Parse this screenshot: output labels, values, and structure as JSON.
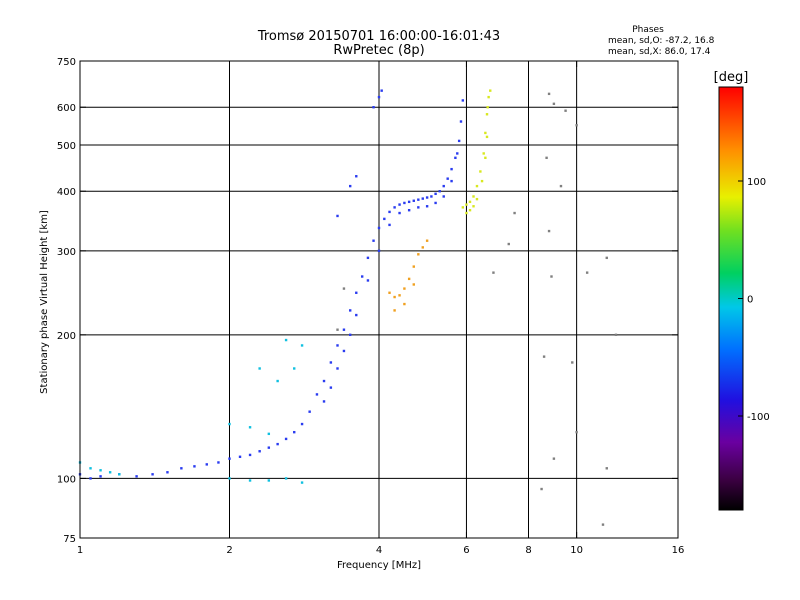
{
  "chart_data": {
    "type": "scatter",
    "title": "Tromsø 20150701 16:00:00-16:01:43",
    "subtitle": "RwPretec (8p)",
    "phases_info": {
      "heading": "Phases",
      "line_o": "mean, sd,O: -87.2, 16.8",
      "line_x": "mean, sd,X:  86.0, 17.4"
    },
    "xlabel": "Frequency [MHz]",
    "ylabel": "Stationary phase Virtual Height [km]",
    "x_scale": "log",
    "y_scale": "log",
    "xlim": [
      1,
      16
    ],
    "ylim": [
      75,
      750
    ],
    "x_ticks": [
      1,
      2,
      4,
      6,
      8,
      10,
      16
    ],
    "y_ticks": [
      75,
      100,
      200,
      300,
      400,
      500,
      600,
      750
    ],
    "x_gridlines": [
      2,
      4,
      6,
      8,
      10
    ],
    "y_gridlines": [
      100,
      200,
      300,
      400,
      500,
      600
    ],
    "grid": true,
    "colorbar": {
      "label": "[deg]",
      "min": -180,
      "max": 180,
      "ticks": [
        -100,
        0,
        100
      ]
    },
    "series": [
      {
        "mode": "O",
        "phase_deg": -87,
        "color": "#2a3cf0",
        "points": [
          [
            1.0,
            102
          ],
          [
            1.05,
            100
          ],
          [
            1.1,
            101
          ],
          [
            1.2,
            102
          ],
          [
            1.3,
            101
          ],
          [
            1.4,
            102
          ],
          [
            1.5,
            103
          ],
          [
            1.6,
            105
          ],
          [
            1.7,
            106
          ],
          [
            1.8,
            107
          ],
          [
            1.9,
            108
          ],
          [
            2.0,
            110
          ],
          [
            2.1,
            111
          ],
          [
            2.2,
            112
          ],
          [
            2.3,
            114
          ],
          [
            2.4,
            116
          ],
          [
            2.5,
            118
          ],
          [
            2.6,
            121
          ],
          [
            2.7,
            125
          ],
          [
            2.8,
            130
          ],
          [
            2.9,
            138
          ],
          [
            3.0,
            150
          ],
          [
            3.1,
            160
          ],
          [
            3.2,
            175
          ],
          [
            3.3,
            190
          ],
          [
            3.4,
            205
          ],
          [
            3.5,
            225
          ],
          [
            3.6,
            245
          ],
          [
            3.7,
            265
          ],
          [
            3.8,
            290
          ],
          [
            3.9,
            315
          ],
          [
            4.0,
            335
          ],
          [
            4.1,
            350
          ],
          [
            4.2,
            362
          ],
          [
            4.3,
            370
          ],
          [
            4.4,
            375
          ],
          [
            4.5,
            378
          ],
          [
            4.6,
            380
          ],
          [
            4.7,
            382
          ],
          [
            4.8,
            384
          ],
          [
            4.9,
            386
          ],
          [
            5.0,
            388
          ],
          [
            5.1,
            390
          ],
          [
            5.2,
            395
          ],
          [
            5.3,
            400
          ],
          [
            5.4,
            410
          ],
          [
            5.5,
            425
          ],
          [
            5.6,
            445
          ],
          [
            5.7,
            470
          ],
          [
            5.8,
            510
          ],
          [
            5.85,
            560
          ],
          [
            5.9,
            620
          ],
          [
            3.1,
            145
          ],
          [
            3.2,
            155
          ],
          [
            3.3,
            170
          ],
          [
            3.4,
            185
          ],
          [
            3.5,
            200
          ],
          [
            3.6,
            220
          ],
          [
            3.8,
            260
          ],
          [
            4.0,
            300
          ],
          [
            4.2,
            340
          ],
          [
            4.4,
            360
          ],
          [
            4.6,
            365
          ],
          [
            4.8,
            370
          ],
          [
            5.0,
            372
          ],
          [
            5.2,
            378
          ],
          [
            5.4,
            390
          ],
          [
            5.6,
            420
          ],
          [
            5.75,
            480
          ],
          [
            3.9,
            600
          ],
          [
            4.0,
            630
          ],
          [
            4.05,
            650
          ],
          [
            3.6,
            430
          ],
          [
            3.5,
            410
          ],
          [
            3.3,
            355
          ]
        ]
      },
      {
        "mode": "X",
        "phase_deg": 86,
        "color": "#d8e820",
        "points": [
          [
            5.9,
            370
          ],
          [
            6.0,
            375
          ],
          [
            6.1,
            380
          ],
          [
            6.2,
            390
          ],
          [
            6.3,
            410
          ],
          [
            6.4,
            440
          ],
          [
            6.5,
            480
          ],
          [
            6.55,
            530
          ],
          [
            6.6,
            580
          ],
          [
            6.65,
            630
          ],
          [
            6.7,
            650
          ],
          [
            6.0,
            360
          ],
          [
            6.1,
            365
          ],
          [
            6.2,
            372
          ],
          [
            6.3,
            385
          ],
          [
            6.45,
            420
          ],
          [
            6.55,
            470
          ],
          [
            6.6,
            520
          ],
          [
            6.62,
            600
          ]
        ]
      },
      {
        "mode": "mixed",
        "phase_deg": 120,
        "color": "#f0a020",
        "points": [
          [
            4.2,
            245
          ],
          [
            4.3,
            240
          ],
          [
            4.4,
            242
          ],
          [
            4.5,
            250
          ],
          [
            4.6,
            262
          ],
          [
            4.7,
            278
          ],
          [
            4.8,
            295
          ],
          [
            4.9,
            305
          ],
          [
            5.0,
            315
          ],
          [
            4.3,
            225
          ],
          [
            4.5,
            232
          ],
          [
            4.7,
            255
          ]
        ]
      },
      {
        "mode": "E-region",
        "phase_deg": -30,
        "color": "#10c0e0",
        "points": [
          [
            1.0,
            108
          ],
          [
            1.05,
            105
          ],
          [
            1.1,
            104
          ],
          [
            1.15,
            103
          ],
          [
            1.2,
            102
          ],
          [
            2.0,
            100
          ],
          [
            2.2,
            99
          ],
          [
            2.4,
            99
          ],
          [
            2.6,
            100
          ],
          [
            2.8,
            98
          ],
          [
            2.3,
            170
          ],
          [
            2.5,
            160
          ],
          [
            2.7,
            170
          ],
          [
            2.6,
            195
          ],
          [
            2.8,
            190
          ],
          [
            2.0,
            130
          ],
          [
            2.2,
            128
          ],
          [
            2.4,
            124
          ]
        ]
      },
      {
        "mode": "scattered",
        "phase_deg": 0,
        "color": "#808080",
        "points": [
          [
            8.8,
            640
          ],
          [
            9.0,
            610
          ],
          [
            9.5,
            590
          ],
          [
            10.0,
            550
          ],
          [
            8.7,
            470
          ],
          [
            9.3,
            410
          ],
          [
            8.8,
            330
          ],
          [
            8.9,
            265
          ],
          [
            10.5,
            270
          ],
          [
            11.5,
            290
          ],
          [
            12.0,
            200
          ],
          [
            8.6,
            180
          ],
          [
            9.8,
            175
          ],
          [
            10.0,
            125
          ],
          [
            9.0,
            110
          ],
          [
            11.5,
            105
          ],
          [
            8.5,
            95
          ],
          [
            11.3,
            80
          ],
          [
            7.3,
            310
          ],
          [
            6.8,
            270
          ],
          [
            7.5,
            360
          ],
          [
            3.4,
            250
          ],
          [
            3.3,
            205
          ]
        ]
      }
    ]
  }
}
